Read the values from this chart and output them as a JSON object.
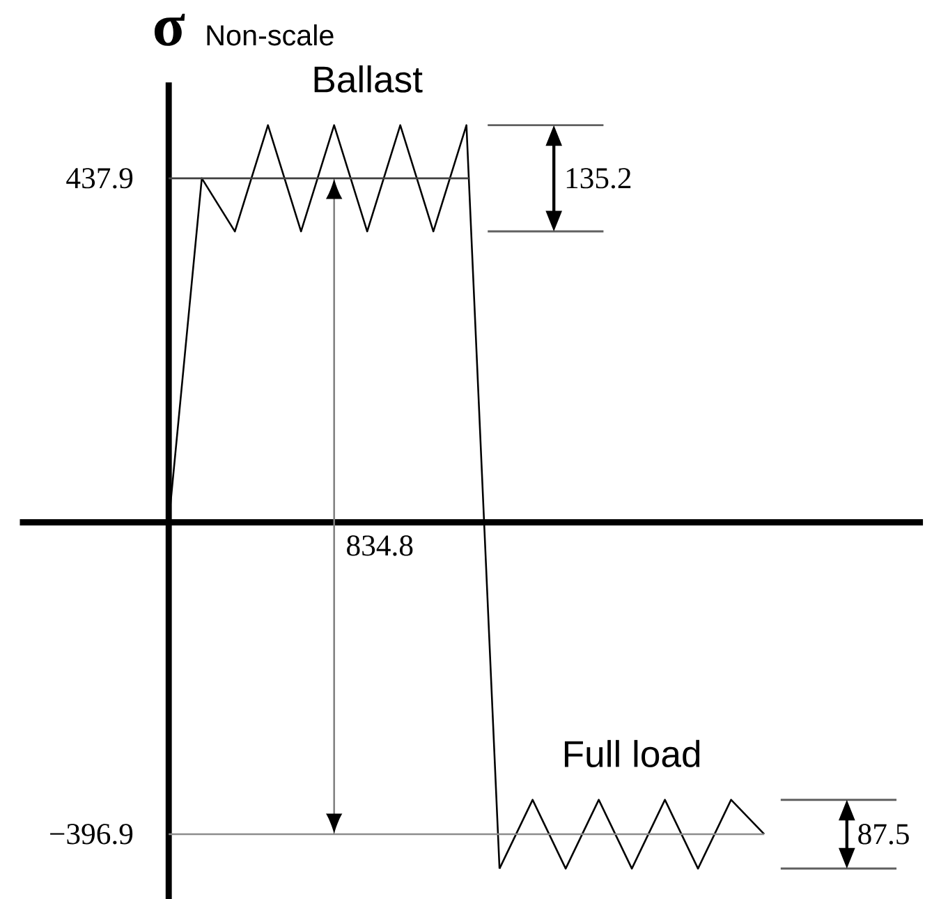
{
  "chart_data": {
    "type": "line",
    "ylabel": "σ",
    "annotations": [
      "Non-scale",
      "135.2",
      "834.8",
      "87.5"
    ],
    "categories": [
      null,
      null,
      null,
      null,
      null,
      null,
      null,
      null,
      null,
      null,
      null,
      null,
      null,
      null,
      null,
      null,
      null,
      null,
      null
    ],
    "series": [
      {
        "name": "Ballast",
        "color": "#000000",
        "values": [
          0,
          437.9,
          370.3,
          505.5,
          370.3,
          505.5,
          370.3,
          505.5,
          370.3,
          505.5,
          -440.7,
          null,
          null,
          null,
          null,
          null,
          null,
          null,
          null
        ]
      },
      {
        "name": "Full load",
        "color": "#000000",
        "values": [
          null,
          null,
          null,
          null,
          null,
          null,
          null,
          null,
          null,
          null,
          -440.7,
          -353.2,
          -440.7,
          -353.2,
          -440.7,
          -353.2,
          -440.7,
          -353.2,
          -396.9
        ]
      }
    ],
    "ylim": [
      -480,
      560
    ],
    "yticks": [
      437.9,
      {
        "value": -396.9,
        "label": "−396.9"
      }
    ],
    "tick_labels": "y",
    "ref_lines": [
      {
        "axis": "y",
        "value": 437.9,
        "color": "#404040"
      },
      {
        "axis": "y",
        "value": -396.9,
        "color": "#8c8c8c"
      }
    ],
    "marker": "none",
    "line_style": "solid"
  }
}
